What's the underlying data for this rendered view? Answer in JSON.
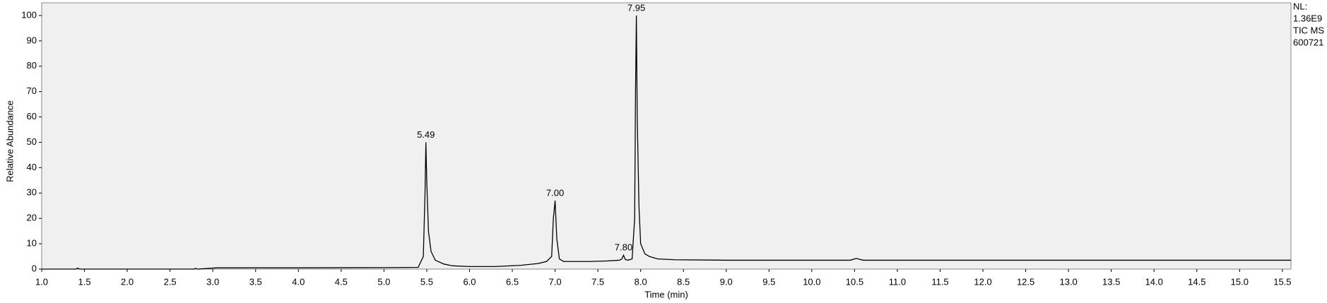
{
  "chart_data": {
    "type": "line",
    "x_label": "Time (min)",
    "y_label": "Relative Abundance",
    "info": [
      "NL:",
      "1.36E9",
      "TIC  MS",
      "600721"
    ],
    "x": [
      1.0,
      1.4,
      1.42,
      1.44,
      2.0,
      2.78,
      2.8,
      2.82,
      3.05,
      3.1,
      4.0,
      5.0,
      5.4,
      5.46,
      5.48,
      5.49,
      5.5,
      5.52,
      5.55,
      5.6,
      5.7,
      5.8,
      6.0,
      6.3,
      6.6,
      6.8,
      6.9,
      6.96,
      6.98,
      7.0,
      7.02,
      7.05,
      7.1,
      7.2,
      7.4,
      7.6,
      7.75,
      7.78,
      7.8,
      7.82,
      7.85,
      7.9,
      7.93,
      7.94,
      7.95,
      7.96,
      7.98,
      8.0,
      8.05,
      8.1,
      8.2,
      8.4,
      9.0,
      10.0,
      10.45,
      10.52,
      10.6,
      11.0,
      12.0,
      13.0,
      14.0,
      15.0,
      15.6
    ],
    "series": [
      {
        "name": "TIC",
        "color": "#000000",
        "values": [
          0,
          0,
          0.4,
          0,
          0,
          0,
          0.3,
          0,
          0.5,
          0.5,
          0.5,
          0.6,
          0.7,
          5,
          30,
          50,
          35,
          15,
          7,
          3.5,
          2,
          1.3,
          1,
          1,
          1.5,
          2.2,
          3,
          5,
          20,
          27,
          12,
          4,
          3,
          3,
          3,
          3.2,
          3.5,
          4,
          5.5,
          3.8,
          3.5,
          4,
          20,
          70,
          100,
          60,
          25,
          10,
          6,
          5,
          4,
          3.7,
          3.5,
          3.5,
          3.5,
          4.2,
          3.5,
          3.5,
          3.5,
          3.5,
          3.5,
          3.5,
          3.5
        ]
      }
    ],
    "peak_labels": [
      {
        "value": 5.49,
        "label": "5.49"
      },
      {
        "value": 7.0,
        "label": "7.00"
      },
      {
        "value": 7.8,
        "label": "7.80"
      },
      {
        "value": 7.95,
        "label": "7.95"
      }
    ],
    "xlim": [
      1.0,
      15.6
    ],
    "ylim": [
      0,
      105
    ],
    "xticks": [
      {
        "value": 1,
        "label": "1.0"
      },
      1.5,
      {
        "value": 2,
        "label": "2.0"
      },
      2.5,
      {
        "value": 3,
        "label": "3.0"
      },
      3.5,
      {
        "value": 4,
        "label": "4.0"
      },
      4.5,
      {
        "value": 5,
        "label": "5.0"
      },
      5.5,
      {
        "value": 6,
        "label": "6.0"
      },
      6.5,
      {
        "value": 7,
        "label": "7.0"
      },
      7.5,
      {
        "value": 8,
        "label": "8.0"
      },
      8.5,
      {
        "value": 9,
        "label": "9.0"
      },
      9.5,
      {
        "value": 10,
        "label": "10.0"
      },
      10.5,
      {
        "value": 11,
        "label": "11.0"
      },
      11.5,
      {
        "value": 12,
        "label": "12.0"
      },
      12.5,
      {
        "value": 13,
        "label": "13.0"
      },
      13.5,
      {
        "value": 14,
        "label": "14.0"
      },
      14.5,
      {
        "value": 15,
        "label": "15.0"
      },
      15.5
    ],
    "yticks": [
      0,
      10,
      20,
      30,
      40,
      50,
      60,
      70,
      80,
      90,
      100
    ],
    "background": "#f0f0f0"
  }
}
